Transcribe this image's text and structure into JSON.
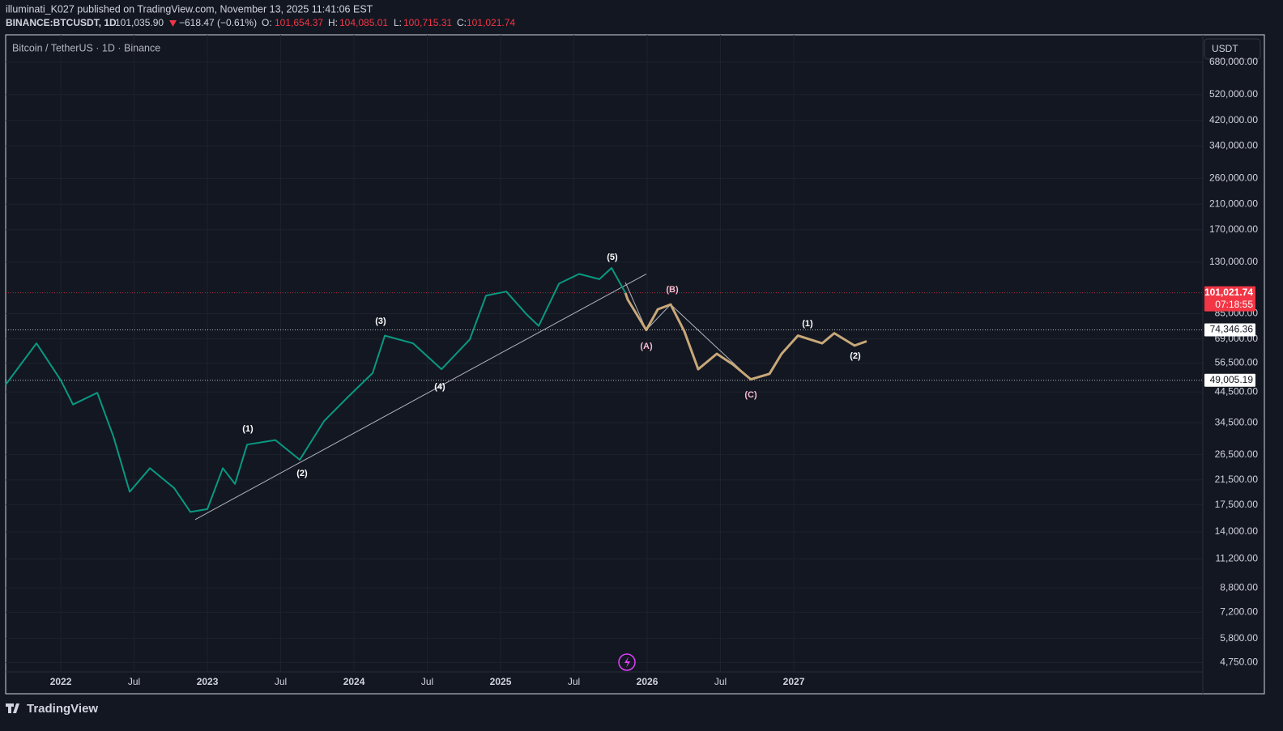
{
  "header": {
    "publisher": "illuminati_K027 published on TradingView.com, November 13, 2025 11:41:06 EST",
    "symbol": "BINANCE:BTCUSDT, 1D",
    "last": "101,035.90",
    "change": "−618.47 (−0.61%)",
    "o_label": "O:",
    "open": "101,654.37",
    "h_label": "H:",
    "high": "104,085.01",
    "l_label": "L:",
    "low": "100,715.31",
    "c_label": "C:",
    "close": "101,021.74"
  },
  "chart_data": {
    "type": "line",
    "legend": "Bitcoin / TetherUS · 1D · Binance",
    "currency": "USDT",
    "log_scale": true,
    "grid": true,
    "xlim": [
      2021.624,
      2029.79
    ],
    "ylim": [
      3672,
      852000
    ],
    "xticks": [
      2022,
      {
        "value": 2022.5,
        "label": "Jul"
      },
      2023,
      {
        "value": 2023.5,
        "label": "Jul"
      },
      2024,
      {
        "value": 2024.5,
        "label": "Jul"
      },
      2025,
      {
        "value": 2025.5,
        "label": "Jul"
      },
      2026,
      {
        "value": 2026.5,
        "label": "Jul"
      },
      2027
    ],
    "yticks": [
      {
        "value": 680000,
        "label": "680,000.00"
      },
      {
        "value": 520000,
        "label": "520,000.00"
      },
      {
        "value": 420000,
        "label": "420,000.00"
      },
      {
        "value": 340000,
        "label": "340,000.00"
      },
      {
        "value": 260000,
        "label": "260,000.00"
      },
      {
        "value": 210000,
        "label": "210,000.00"
      },
      {
        "value": 170000,
        "label": "170,000.00"
      },
      {
        "value": 130000,
        "label": "130,000.00"
      },
      {
        "value": 85000,
        "label": "85,000.00"
      },
      {
        "value": 69000,
        "label": "69,000.00"
      },
      {
        "value": 56500,
        "label": "56,500.00"
      },
      {
        "value": 44500,
        "label": "44,500.00"
      },
      {
        "value": 34500,
        "label": "34,500.00"
      },
      {
        "value": 26500,
        "label": "26,500.00"
      },
      {
        "value": 21500,
        "label": "21,500.00"
      },
      {
        "value": 17500,
        "label": "17,500.00"
      },
      {
        "value": 14000,
        "label": "14,000.00"
      },
      {
        "value": 11200,
        "label": "11,200.00"
      },
      {
        "value": 8800,
        "label": "8,800.00"
      },
      {
        "value": 7200,
        "label": "7,200.00"
      },
      {
        "value": 5800,
        "label": "5,800.00"
      },
      {
        "value": 4750,
        "label": "4,750.00"
      }
    ],
    "series": [
      {
        "color": "#089981",
        "x": [
          2021.624,
          2021.834,
          2022.0,
          2022.083,
          2022.249,
          2022.359,
          2022.47,
          2022.608,
          2022.773,
          2022.884,
          2023.0,
          2023.105,
          2023.188,
          2023.271,
          2023.464,
          2023.63,
          2023.796,
          2023.961,
          2024.127,
          2024.21,
          2024.403,
          2024.597,
          2024.79,
          2024.901,
          2025.039,
          2025.177,
          2025.26,
          2025.398,
          2025.536,
          2025.674,
          2025.757,
          2025.851
        ],
        "values": [
          47300,
          66500,
          49000,
          40100,
          44200,
          30800,
          19500,
          23700,
          20100,
          16500,
          16900,
          23700,
          20800,
          28800,
          29900,
          25400,
          35000,
          42800,
          52000,
          70900,
          66500,
          53700,
          68700,
          98700,
          102000,
          84500,
          76800,
          108900,
          118000,
          113000,
          124000,
          101000
        ]
      },
      {
        "color": "#c8a878",
        "x": [
          2025.851,
          2025.867,
          2025.994,
          2026.072,
          2026.16,
          2026.254,
          2026.348,
          2026.475,
          2026.586,
          2026.707,
          2026.834,
          2026.917,
          2027.028,
          2027.193,
          2027.276,
          2027.414,
          2027.497
        ],
        "values": [
          101000,
          95500,
          74300,
          88100,
          91700,
          73300,
          53700,
          61000,
          55800,
          49400,
          51700,
          61000,
          70900,
          66500,
          72300,
          65300,
          67700
        ]
      }
    ],
    "trendline": {
      "x": [
        2022.917,
        2025.994
      ],
      "values": [
        15500,
        118000
      ]
    },
    "projection_path": {
      "x": [
        2025.851,
        2025.994,
        2026.16,
        2026.707
      ],
      "values": [
        110000,
        74300,
        91700,
        49400
      ]
    },
    "hlines": [
      {
        "value": 101021.74,
        "label": "101,021.74",
        "color": "#f23645"
      },
      {
        "value": 74346.36,
        "label": "74,346.36",
        "color": "#ffffff"
      },
      {
        "value": 49005.19,
        "label": "49,005.19",
        "color": "#ffffff"
      }
    ],
    "countdown": "07:18:55",
    "annotations": [
      "(1)",
      "(2)",
      "(3)",
      "(4)",
      "(5)",
      "(A)",
      "(B)",
      "(C)",
      "(1)",
      "(2)"
    ]
  },
  "footer": {
    "brand": "TradingView"
  }
}
